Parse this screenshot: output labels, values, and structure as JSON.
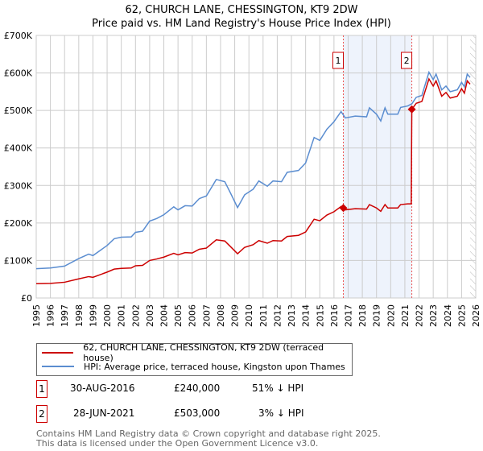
{
  "chart_data": {
    "type": "line",
    "title": "62, CHURCH LANE, CHESSINGTON, KT9 2DW",
    "subtitle": "Price paid vs. HM Land Registry's House Price Index (HPI)",
    "xlim": [
      1995,
      2026
    ],
    "ylim": [
      0,
      700000
    ],
    "x_ticks": [
      "1995",
      "1996",
      "1997",
      "1998",
      "1999",
      "2000",
      "2001",
      "2002",
      "2003",
      "2004",
      "2005",
      "2006",
      "2007",
      "2008",
      "2009",
      "2010",
      "2011",
      "2012",
      "2013",
      "2014",
      "2015",
      "2016",
      "2017",
      "2018",
      "2019",
      "2020",
      "2021",
      "2022",
      "2023",
      "2024",
      "2025",
      "2026"
    ],
    "y_ticks": [
      {
        "v": 0,
        "label": "£0"
      },
      {
        "v": 100000,
        "label": "£100K"
      },
      {
        "v": 200000,
        "label": "£200K"
      },
      {
        "v": 300000,
        "label": "£300K"
      },
      {
        "v": 400000,
        "label": "£400K"
      },
      {
        "v": 500000,
        "label": "£500K"
      },
      {
        "v": 600000,
        "label": "£600K"
      },
      {
        "v": 700000,
        "label": "£700K"
      }
    ],
    "grid": true,
    "shaded_range": [
      2016.66,
      2021.49
    ],
    "forecast_hatch_from": 2025.6,
    "series": [
      {
        "name": "62, CHURCH LANE, CHESSINGTON, KT9 2DW (terraced house)",
        "color": "#cc0000",
        "x": [
          1995,
          1996,
          1997,
          1998,
          1998.7,
          1999,
          2000,
          2000.5,
          2001,
          2001.7,
          2002,
          2002.5,
          2003,
          2003.5,
          2004,
          2004.7,
          2005,
          2005.5,
          2006,
          2006.5,
          2007,
          2007.7,
          2008.3,
          2008.7,
          2009.2,
          2009.7,
          2010.3,
          2010.7,
          2011.3,
          2011.7,
          2012.3,
          2012.7,
          2013.5,
          2014,
          2014.6,
          2015,
          2015.5,
          2016,
          2016.5,
          2016.66,
          2016.8,
          2017.5,
          2018.3,
          2018.5,
          2019,
          2019.3,
          2019.6,
          2019.8,
          2020.5,
          2020.7,
          2021.2,
          2021.45,
          2021.49,
          2021.8,
          2022.2,
          2022.7,
          2023,
          2023.2,
          2023.6,
          2023.9,
          2024.2,
          2024.7,
          2025,
          2025.2,
          2025.4,
          2025.6
        ],
        "y": [
          38000,
          39000,
          42000,
          51000,
          57000,
          55000,
          69000,
          77000,
          79000,
          80000,
          86000,
          87000,
          100000,
          104000,
          109000,
          119000,
          115000,
          121000,
          120000,
          130000,
          133000,
          155000,
          152000,
          137000,
          118000,
          135000,
          142000,
          153000,
          146000,
          153000,
          152000,
          164000,
          167000,
          176000,
          210000,
          206000,
          221000,
          230000,
          244000,
          240000,
          235000,
          238000,
          237000,
          249000,
          240000,
          231000,
          249000,
          240000,
          240000,
          249000,
          251000,
          251000,
          503000,
          519000,
          524000,
          584000,
          565000,
          579000,
          538000,
          548000,
          533000,
          538000,
          558000,
          546000,
          579000,
          570000
        ]
      },
      {
        "name": "HPI: Average price, terraced house, Kingston upon Thames",
        "color": "#5b8dd0",
        "x": [
          1995,
          1996,
          1997,
          1998,
          1998.7,
          1999,
          2000,
          2000.5,
          2001,
          2001.7,
          2002,
          2002.5,
          2003,
          2003.5,
          2004,
          2004.7,
          2005,
          2005.5,
          2006,
          2006.5,
          2007,
          2007.7,
          2008.3,
          2008.7,
          2009.2,
          2009.7,
          2010.3,
          2010.7,
          2011.3,
          2011.7,
          2012.3,
          2012.7,
          2013.5,
          2014,
          2014.6,
          2015,
          2015.5,
          2016,
          2016.5,
          2016.8,
          2017.5,
          2018.3,
          2018.5,
          2019,
          2019.3,
          2019.6,
          2019.8,
          2020.5,
          2020.7,
          2021.2,
          2021.5,
          2021.8,
          2022.2,
          2022.7,
          2023,
          2023.2,
          2023.6,
          2023.9,
          2024.2,
          2024.7,
          2025,
          2025.2,
          2025.4,
          2025.6
        ],
        "y": [
          78000,
          80000,
          85000,
          105000,
          117000,
          113000,
          140000,
          158000,
          162000,
          163000,
          175000,
          178000,
          205000,
          212000,
          222000,
          243000,
          235000,
          246000,
          245000,
          265000,
          272000,
          316000,
          310000,
          280000,
          241000,
          275000,
          290000,
          312000,
          298000,
          312000,
          310000,
          335000,
          340000,
          360000,
          428000,
          420000,
          450000,
          470000,
          497000,
          480000,
          485000,
          483000,
          507000,
          490000,
          472000,
          507000,
          490000,
          490000,
          508000,
          512000,
          518000,
          535000,
          540000,
          602000,
          582000,
          597000,
          555000,
          565000,
          550000,
          555000,
          575000,
          563000,
          597000,
          588000
        ]
      }
    ],
    "sales": [
      {
        "id": "1",
        "x": 2016.66,
        "price": 240000,
        "date": "30-AUG-2016",
        "price_label": "£240,000",
        "hpi_diff": "51% ↓ HPI"
      },
      {
        "id": "2",
        "x": 2021.49,
        "price": 503000,
        "date": "28-JUN-2021",
        "price_label": "£503,000",
        "hpi_diff": "3% ↓ HPI"
      }
    ]
  },
  "footer": {
    "line1": "Contains HM Land Registry data © Crown copyright and database right 2025.",
    "line2": "This data is licensed under the Open Government Licence v3.0."
  }
}
